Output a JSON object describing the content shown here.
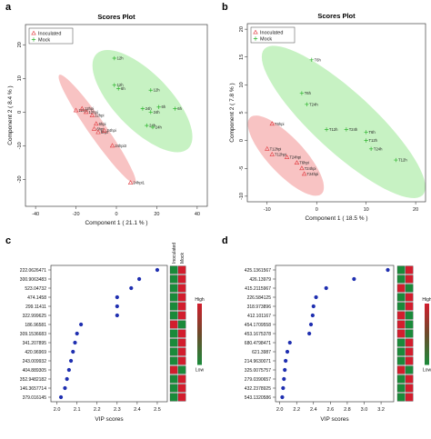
{
  "panels": {
    "a": "a",
    "b": "b",
    "c": "c",
    "d": "d"
  },
  "colors": {
    "inoculated": "#e0393e",
    "mock": "#2fb52f",
    "ellipse_inoculated": "#f7b9b9",
    "ellipse_mock": "#bdf0b9",
    "vip_point": "#1f2fb0",
    "high": "#d21d2d",
    "low": "#1a8a3a"
  },
  "chart_data": [
    {
      "id": "scores-a",
      "type": "scatter",
      "title": "Scores Plot",
      "xlabel": "Component 1 ( 21.1 % )",
      "ylabel": "Component 2 ( 8.4 % )",
      "xlim": [
        -45,
        45
      ],
      "ylim": [
        -28,
        26
      ],
      "xticks": [
        -40,
        -20,
        0,
        20,
        40
      ],
      "yticks": [
        -20,
        -10,
        0,
        10,
        20
      ],
      "grid": false,
      "legend": "top-left",
      "series": [
        {
          "name": "Inoculated",
          "marker": "triangle",
          "points": [
            {
              "x": -20,
              "y": 0.5,
              "label": "12hpi"
            },
            {
              "x": -17,
              "y": 1,
              "label": "12hpi"
            },
            {
              "x": -15,
              "y": 0,
              "label": "12hpi"
            },
            {
              "x": -12,
              "y": -1,
              "label": "12hpi"
            },
            {
              "x": -10,
              "y": -3.5,
              "label": "6hpi"
            },
            {
              "x": -11,
              "y": -5,
              "label": "6hpi"
            },
            {
              "x": -9,
              "y": -6,
              "label": "6hpi"
            },
            {
              "x": -6,
              "y": -5.5,
              "label": "24hpi"
            },
            {
              "x": -2,
              "y": -10,
              "label": "24hpi3"
            },
            {
              "x": 7,
              "y": -21,
              "label": "24hpi1"
            }
          ]
        },
        {
          "name": "Mock",
          "marker": "plus",
          "points": [
            {
              "x": -1,
              "y": 16,
              "label": "12h"
            },
            {
              "x": -1,
              "y": 8,
              "label": "12h"
            },
            {
              "x": 1,
              "y": 7,
              "label": "6h"
            },
            {
              "x": 17,
              "y": 6.5,
              "label": "12h"
            },
            {
              "x": 13,
              "y": 1,
              "label": "24h"
            },
            {
              "x": 21,
              "y": 1.5,
              "label": "6h"
            },
            {
              "x": 29,
              "y": 1,
              "label": "6h"
            },
            {
              "x": 17,
              "y": 0,
              "label": "24h"
            },
            {
              "x": 15,
              "y": -4,
              "label": "24h"
            },
            {
              "x": 18,
              "y": -4.5,
              "label": "24h"
            }
          ]
        }
      ]
    },
    {
      "id": "scores-b",
      "type": "scatter",
      "title": "Scores Plot",
      "xlabel": "Component 1 ( 18.5 % )",
      "ylabel": "Component 2 ( 7.8 % )",
      "xlim": [
        -14,
        22
      ],
      "ylim": [
        -11,
        21
      ],
      "xticks": [
        -10,
        0,
        10,
        20
      ],
      "yticks": [
        -10,
        -5,
        0,
        5,
        10,
        15,
        20
      ],
      "grid": false,
      "legend": "top-left",
      "series": [
        {
          "name": "Inoculated",
          "marker": "triangle",
          "points": [
            {
              "x": -9,
              "y": 3,
              "label": "T6hpi"
            },
            {
              "x": -10,
              "y": -1.5,
              "label": "T12hpi"
            },
            {
              "x": -9,
              "y": -2.5,
              "label": "T12hpi"
            },
            {
              "x": -6,
              "y": -3,
              "label": "T24hpi"
            },
            {
              "x": -4,
              "y": -4,
              "label": "T6hpi"
            },
            {
              "x": -3,
              "y": -5,
              "label": "T24hpi"
            },
            {
              "x": -2.5,
              "y": -6,
              "label": "T24hpi"
            }
          ]
        },
        {
          "name": "Mock",
          "marker": "plus",
          "points": [
            {
              "x": -1,
              "y": 14.5,
              "label": "T6h"
            },
            {
              "x": -3,
              "y": 8.5,
              "label": "T6h"
            },
            {
              "x": -2,
              "y": 6.5,
              "label": "T24h"
            },
            {
              "x": 2,
              "y": 2,
              "label": "T12h"
            },
            {
              "x": 6,
              "y": 2,
              "label": "T24h"
            },
            {
              "x": 10,
              "y": 1.5,
              "label": "T6h"
            },
            {
              "x": 10,
              "y": 0,
              "label": "T12h"
            },
            {
              "x": 11,
              "y": -1.5,
              "label": "T24h"
            },
            {
              "x": 16,
              "y": -3.5,
              "label": "T12h"
            }
          ]
        }
      ]
    },
    {
      "id": "vip-c",
      "type": "scatter",
      "title": "",
      "xlabel": "VIP scores",
      "ylabel": "",
      "xlim": [
        1.97,
        2.55
      ],
      "xticks": [
        2.0,
        2.1,
        2.2,
        2.3,
        2.4,
        2.5
      ],
      "grid": false,
      "heatmap_headers": [
        "Inoculated",
        "Mock"
      ],
      "legend_high": "High",
      "legend_low": "Low",
      "features": [
        {
          "label": "222.0626471",
          "vip": 2.5,
          "heat": [
            "low",
            "high"
          ]
        },
        {
          "label": "300.9063483",
          "vip": 2.41,
          "heat": [
            "low",
            "high"
          ]
        },
        {
          "label": "523.04732",
          "vip": 2.37,
          "heat": [
            "low",
            "high"
          ]
        },
        {
          "label": "474.1458",
          "vip": 2.3,
          "heat": [
            "low",
            "high"
          ]
        },
        {
          "label": "299.11411",
          "vip": 2.3,
          "heat": [
            "low",
            "high"
          ]
        },
        {
          "label": "322.999625",
          "vip": 2.3,
          "heat": [
            "low",
            "high"
          ]
        },
        {
          "label": "186.96581",
          "vip": 2.12,
          "heat": [
            "high",
            "low"
          ]
        },
        {
          "label": "309.1536683",
          "vip": 2.1,
          "heat": [
            "low",
            "high"
          ]
        },
        {
          "label": "341.207895",
          "vip": 2.09,
          "heat": [
            "low",
            "high"
          ]
        },
        {
          "label": "420.96969",
          "vip": 2.08,
          "heat": [
            "low",
            "high"
          ]
        },
        {
          "label": "243.009932",
          "vip": 2.07,
          "heat": [
            "low",
            "high"
          ]
        },
        {
          "label": "404.889305",
          "vip": 2.06,
          "heat": [
            "high",
            "low"
          ]
        },
        {
          "label": "352.9482182",
          "vip": 2.05,
          "heat": [
            "low",
            "high"
          ]
        },
        {
          "label": "146.3657714",
          "vip": 2.04,
          "heat": [
            "low",
            "high"
          ]
        },
        {
          "label": "379.016145",
          "vip": 2.02,
          "heat": [
            "low",
            "high"
          ]
        }
      ]
    },
    {
      "id": "vip-d",
      "type": "scatter",
      "title": "",
      "xlabel": "VIP scores",
      "ylabel": "",
      "xlim": [
        1.95,
        3.35
      ],
      "xticks": [
        2.0,
        2.2,
        2.4,
        2.6,
        2.8,
        3.0,
        3.2
      ],
      "grid": false,
      "legend_high": "High",
      "legend_low": "Low",
      "features": [
        {
          "label": "425.1361567",
          "vip": 3.28,
          "heat": [
            "low",
            "high"
          ]
        },
        {
          "label": "426.13979",
          "vip": 2.88,
          "heat": [
            "low",
            "high"
          ]
        },
        {
          "label": "415.2115967",
          "vip": 2.55,
          "heat": [
            "high",
            "low"
          ]
        },
        {
          "label": "226.584125",
          "vip": 2.43,
          "heat": [
            "low",
            "high"
          ]
        },
        {
          "label": "318.973896",
          "vip": 2.4,
          "heat": [
            "low",
            "high"
          ]
        },
        {
          "label": "412.101167",
          "vip": 2.39,
          "heat": [
            "high",
            "low"
          ]
        },
        {
          "label": "454.1709558",
          "vip": 2.37,
          "heat": [
            "high",
            "low"
          ]
        },
        {
          "label": "453.1675378",
          "vip": 2.35,
          "heat": [
            "high",
            "low"
          ]
        },
        {
          "label": "680.4798471",
          "vip": 2.12,
          "heat": [
            "low",
            "high"
          ]
        },
        {
          "label": "621.3987",
          "vip": 2.09,
          "heat": [
            "low",
            "high"
          ]
        },
        {
          "label": "214.9630071",
          "vip": 2.07,
          "heat": [
            "low",
            "high"
          ]
        },
        {
          "label": "325.0075757",
          "vip": 2.06,
          "heat": [
            "high",
            "low"
          ]
        },
        {
          "label": "279.0390657",
          "vip": 2.05,
          "heat": [
            "low",
            "high"
          ]
        },
        {
          "label": "432.2378925",
          "vip": 2.04,
          "heat": [
            "low",
            "high"
          ]
        },
        {
          "label": "543.1320586",
          "vip": 2.03,
          "heat": [
            "low",
            "high"
          ]
        }
      ]
    }
  ]
}
